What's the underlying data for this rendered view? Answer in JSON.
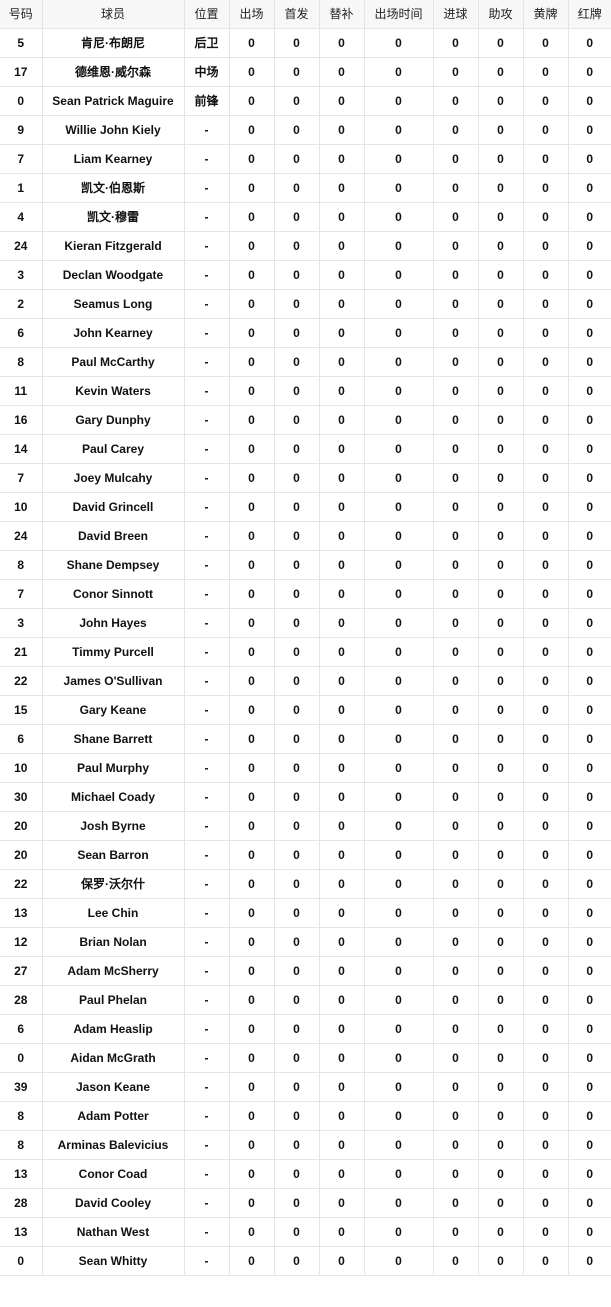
{
  "table": {
    "headers": [
      "号码",
      "球员",
      "位置",
      "出场",
      "首发",
      "替补",
      "出场时间",
      "进球",
      "助攻",
      "黄牌",
      "红牌"
    ],
    "rows": [
      [
        "5",
        "肯尼·布朗尼",
        "后卫",
        "0",
        "0",
        "0",
        "0",
        "0",
        "0",
        "0",
        "0"
      ],
      [
        "17",
        "德维恩·威尔森",
        "中场",
        "0",
        "0",
        "0",
        "0",
        "0",
        "0",
        "0",
        "0"
      ],
      [
        "0",
        "Sean Patrick Maguire",
        "前锋",
        "0",
        "0",
        "0",
        "0",
        "0",
        "0",
        "0",
        "0"
      ],
      [
        "9",
        "Willie John Kiely",
        "-",
        "0",
        "0",
        "0",
        "0",
        "0",
        "0",
        "0",
        "0"
      ],
      [
        "7",
        "Liam Kearney",
        "-",
        "0",
        "0",
        "0",
        "0",
        "0",
        "0",
        "0",
        "0"
      ],
      [
        "1",
        "凯文·伯恩斯",
        "-",
        "0",
        "0",
        "0",
        "0",
        "0",
        "0",
        "0",
        "0"
      ],
      [
        "4",
        "凯文·穆雷",
        "-",
        "0",
        "0",
        "0",
        "0",
        "0",
        "0",
        "0",
        "0"
      ],
      [
        "24",
        "Kieran Fitzgerald",
        "-",
        "0",
        "0",
        "0",
        "0",
        "0",
        "0",
        "0",
        "0"
      ],
      [
        "3",
        "Declan Woodgate",
        "-",
        "0",
        "0",
        "0",
        "0",
        "0",
        "0",
        "0",
        "0"
      ],
      [
        "2",
        "Seamus Long",
        "-",
        "0",
        "0",
        "0",
        "0",
        "0",
        "0",
        "0",
        "0"
      ],
      [
        "6",
        "John Kearney",
        "-",
        "0",
        "0",
        "0",
        "0",
        "0",
        "0",
        "0",
        "0"
      ],
      [
        "8",
        "Paul McCarthy",
        "-",
        "0",
        "0",
        "0",
        "0",
        "0",
        "0",
        "0",
        "0"
      ],
      [
        "11",
        "Kevin Waters",
        "-",
        "0",
        "0",
        "0",
        "0",
        "0",
        "0",
        "0",
        "0"
      ],
      [
        "16",
        "Gary Dunphy",
        "-",
        "0",
        "0",
        "0",
        "0",
        "0",
        "0",
        "0",
        "0"
      ],
      [
        "14",
        "Paul Carey",
        "-",
        "0",
        "0",
        "0",
        "0",
        "0",
        "0",
        "0",
        "0"
      ],
      [
        "7",
        "Joey Mulcahy",
        "-",
        "0",
        "0",
        "0",
        "0",
        "0",
        "0",
        "0",
        "0"
      ],
      [
        "10",
        "David Grincell",
        "-",
        "0",
        "0",
        "0",
        "0",
        "0",
        "0",
        "0",
        "0"
      ],
      [
        "24",
        "David Breen",
        "-",
        "0",
        "0",
        "0",
        "0",
        "0",
        "0",
        "0",
        "0"
      ],
      [
        "8",
        "Shane Dempsey",
        "-",
        "0",
        "0",
        "0",
        "0",
        "0",
        "0",
        "0",
        "0"
      ],
      [
        "7",
        "Conor Sinnott",
        "-",
        "0",
        "0",
        "0",
        "0",
        "0",
        "0",
        "0",
        "0"
      ],
      [
        "3",
        "John Hayes",
        "-",
        "0",
        "0",
        "0",
        "0",
        "0",
        "0",
        "0",
        "0"
      ],
      [
        "21",
        "Timmy Purcell",
        "-",
        "0",
        "0",
        "0",
        "0",
        "0",
        "0",
        "0",
        "0"
      ],
      [
        "22",
        "James O'Sullivan",
        "-",
        "0",
        "0",
        "0",
        "0",
        "0",
        "0",
        "0",
        "0"
      ],
      [
        "15",
        "Gary Keane",
        "-",
        "0",
        "0",
        "0",
        "0",
        "0",
        "0",
        "0",
        "0"
      ],
      [
        "6",
        "Shane Barrett",
        "-",
        "0",
        "0",
        "0",
        "0",
        "0",
        "0",
        "0",
        "0"
      ],
      [
        "10",
        "Paul Murphy",
        "-",
        "0",
        "0",
        "0",
        "0",
        "0",
        "0",
        "0",
        "0"
      ],
      [
        "30",
        "Michael Coady",
        "-",
        "0",
        "0",
        "0",
        "0",
        "0",
        "0",
        "0",
        "0"
      ],
      [
        "20",
        "Josh Byrne",
        "-",
        "0",
        "0",
        "0",
        "0",
        "0",
        "0",
        "0",
        "0"
      ],
      [
        "20",
        "Sean Barron",
        "-",
        "0",
        "0",
        "0",
        "0",
        "0",
        "0",
        "0",
        "0"
      ],
      [
        "22",
        "保罗·沃尔什",
        "-",
        "0",
        "0",
        "0",
        "0",
        "0",
        "0",
        "0",
        "0"
      ],
      [
        "13",
        "Lee Chin",
        "-",
        "0",
        "0",
        "0",
        "0",
        "0",
        "0",
        "0",
        "0"
      ],
      [
        "12",
        "Brian Nolan",
        "-",
        "0",
        "0",
        "0",
        "0",
        "0",
        "0",
        "0",
        "0"
      ],
      [
        "27",
        "Adam McSherry",
        "-",
        "0",
        "0",
        "0",
        "0",
        "0",
        "0",
        "0",
        "0"
      ],
      [
        "28",
        "Paul Phelan",
        "-",
        "0",
        "0",
        "0",
        "0",
        "0",
        "0",
        "0",
        "0"
      ],
      [
        "6",
        "Adam Heaslip",
        "-",
        "0",
        "0",
        "0",
        "0",
        "0",
        "0",
        "0",
        "0"
      ],
      [
        "0",
        "Aidan McGrath",
        "-",
        "0",
        "0",
        "0",
        "0",
        "0",
        "0",
        "0",
        "0"
      ],
      [
        "39",
        "Jason Keane",
        "-",
        "0",
        "0",
        "0",
        "0",
        "0",
        "0",
        "0",
        "0"
      ],
      [
        "8",
        "Adam Potter",
        "-",
        "0",
        "0",
        "0",
        "0",
        "0",
        "0",
        "0",
        "0"
      ],
      [
        "8",
        "Arminas Balevicius",
        "-",
        "0",
        "0",
        "0",
        "0",
        "0",
        "0",
        "0",
        "0"
      ],
      [
        "13",
        "Conor Coad",
        "-",
        "0",
        "0",
        "0",
        "0",
        "0",
        "0",
        "0",
        "0"
      ],
      [
        "28",
        "David Cooley",
        "-",
        "0",
        "0",
        "0",
        "0",
        "0",
        "0",
        "0",
        "0"
      ],
      [
        "13",
        "Nathan West",
        "-",
        "0",
        "0",
        "0",
        "0",
        "0",
        "0",
        "0",
        "0"
      ],
      [
        "0",
        "Sean Whitty",
        "-",
        "0",
        "0",
        "0",
        "0",
        "0",
        "0",
        "0",
        "0"
      ]
    ]
  }
}
